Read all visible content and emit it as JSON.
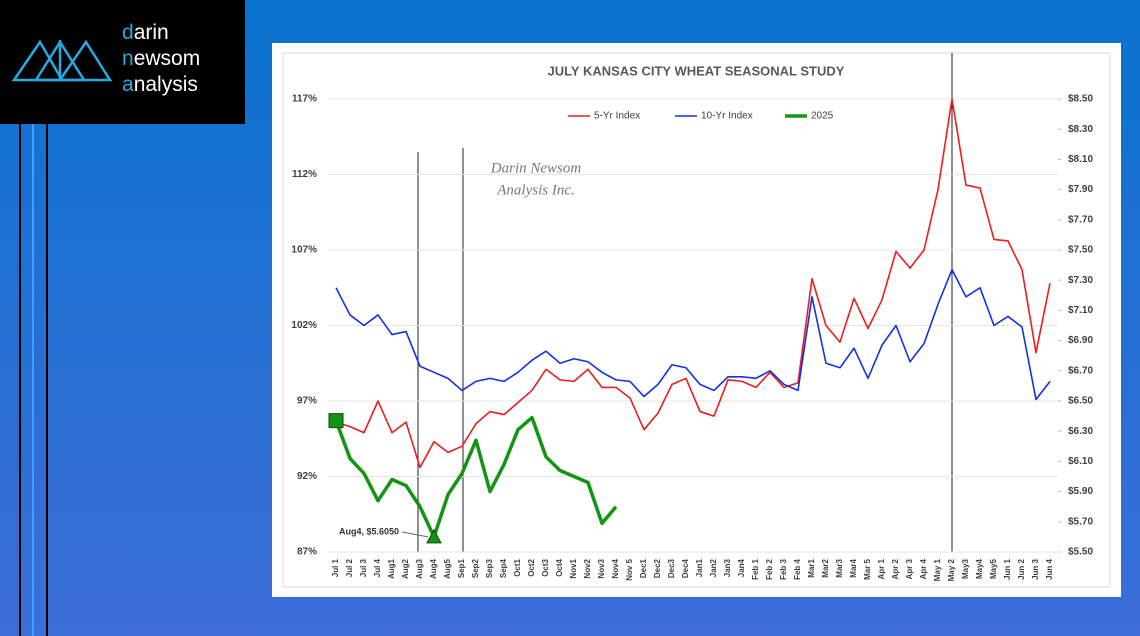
{
  "logo": {
    "lines": [
      "darin",
      "newsom",
      "analysis"
    ]
  },
  "chart_data": {
    "type": "line",
    "title": "JULY KANSAS CITY WHEAT SEASONAL STUDY",
    "watermark": [
      "Darin Newsom",
      "Analysis Inc."
    ],
    "annotation": "Aug4, $5.6050",
    "categories": [
      "Jul 1",
      "Jul 2",
      "Jul 3",
      "Jul 4",
      "Aug1",
      "Aug2",
      "Aug3",
      "Aug4",
      "Aug5",
      "Sep1",
      "Sep2",
      "Sep3",
      "Sep4",
      "Oct1",
      "Oct2",
      "Oct3",
      "Oct4",
      "Nov1",
      "Nov2",
      "Nov3",
      "Nov4",
      "Nov 5",
      "Dec1",
      "Dec2",
      "Dec3",
      "Dec4",
      "Jan1",
      "Jan2",
      "Jan3",
      "Jan4",
      "Feb 1",
      "Feb 2",
      "Feb 3",
      "Feb 4",
      "Mar1",
      "Mar2",
      "Mar3",
      "Mar4",
      "Mar 5",
      "Apr 1",
      "Apr 2",
      "Apr 3",
      "Apr 4",
      "May 1",
      "May 2",
      "May3",
      "May4",
      "May5",
      "Jun 1",
      "Jun 2",
      "Jun 3",
      "Jun 4"
    ],
    "series": [
      {
        "name": "5-Yr Index",
        "color": "#ee1c1c",
        "values": [
          95.6,
          95.3,
          94.9,
          97.0,
          94.9,
          95.6,
          92.6,
          94.3,
          93.6,
          94.0,
          95.5,
          96.3,
          96.1,
          96.9,
          97.7,
          99.1,
          98.4,
          98.3,
          99.1,
          97.9,
          97.9,
          97.2,
          95.1,
          96.2,
          98.1,
          98.5,
          96.3,
          96.0,
          98.4,
          98.3,
          97.9,
          98.9,
          97.9,
          98.2,
          105.1,
          102.0,
          100.9,
          103.8,
          101.8,
          103.7,
          106.9,
          105.8,
          107.0,
          111.0,
          117.0,
          111.3,
          111.1,
          107.7,
          107.6,
          105.7,
          100.2,
          104.8
        ]
      },
      {
        "name": "10-Yr Index",
        "color": "#1430e6",
        "values": [
          104.5,
          102.7,
          102.0,
          102.7,
          101.4,
          101.6,
          99.3,
          98.9,
          98.5,
          97.7,
          98.3,
          98.5,
          98.3,
          98.9,
          99.7,
          100.3,
          99.5,
          99.8,
          99.6,
          98.9,
          98.4,
          98.3,
          97.3,
          98.1,
          99.4,
          99.2,
          98.1,
          97.7,
          98.6,
          98.6,
          98.5,
          99.0,
          98.1,
          97.7,
          103.9,
          99.5,
          99.2,
          100.5,
          98.5,
          100.7,
          102.0,
          99.6,
          100.8,
          103.4,
          105.7,
          103.9,
          104.5,
          102.0,
          102.6,
          101.9,
          97.1,
          98.3
        ]
      },
      {
        "name": "2025",
        "color": "#139413",
        "values": [
          95.7,
          93.2,
          92.2,
          90.4,
          91.8,
          91.4,
          90.0,
          88.0,
          90.8,
          92.2,
          94.4,
          91.0,
          92.8,
          95.1,
          95.9,
          93.3,
          92.4,
          92.0,
          91.6,
          88.9,
          90.0,
          null,
          null,
          null,
          null,
          null,
          null,
          null,
          null,
          null,
          null,
          null,
          null,
          null,
          null,
          null,
          null,
          null,
          null,
          null,
          null,
          null,
          null,
          null,
          null,
          null,
          null,
          null,
          null,
          null,
          null,
          null
        ]
      }
    ],
    "ylim": [
      87,
      117
    ],
    "yticks": [
      {
        "value": 87,
        "label": "87%"
      },
      {
        "value": 92,
        "label": "92%"
      },
      {
        "value": 97,
        "label": "97%"
      },
      {
        "value": 102,
        "label": "102%"
      },
      {
        "value": 107,
        "label": "107%"
      },
      {
        "value": 112,
        "label": "112%"
      },
      {
        "value": 117,
        "label": "117%"
      }
    ],
    "y2lim": [
      5.5,
      8.5
    ],
    "y2ticks": [
      {
        "value": 5.5,
        "label": "$5.50"
      },
      {
        "value": 5.7,
        "label": "$5.70"
      },
      {
        "value": 5.9,
        "label": "$5.90"
      },
      {
        "value": 6.1,
        "label": "$6.10"
      },
      {
        "value": 6.3,
        "label": "$6.30"
      },
      {
        "value": 6.5,
        "label": "$6.50"
      },
      {
        "value": 6.7,
        "label": "$6.70"
      },
      {
        "value": 6.9,
        "label": "$6.90"
      },
      {
        "value": 7.1,
        "label": "$7.10"
      },
      {
        "value": 7.3,
        "label": "$7.30"
      },
      {
        "value": 7.5,
        "label": "$7.50"
      },
      {
        "value": 7.7,
        "label": "$7.70"
      },
      {
        "value": 7.9,
        "label": "$7.90"
      },
      {
        "value": 8.1,
        "label": "$8.10"
      },
      {
        "value": 8.3,
        "label": "$8.30"
      },
      {
        "value": 8.5,
        "label": "$8.50"
      }
    ],
    "legend": "top"
  }
}
